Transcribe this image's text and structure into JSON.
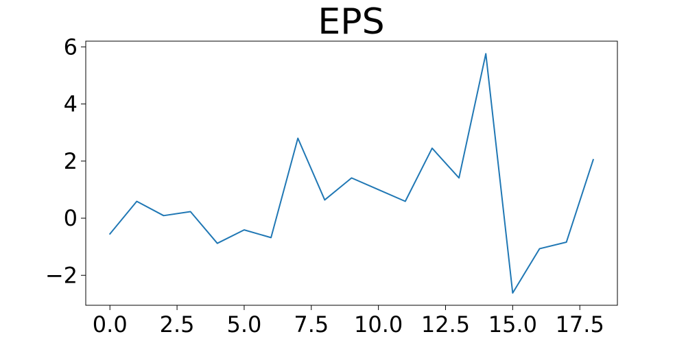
{
  "chart_data": {
    "type": "line",
    "title": "EPS",
    "xlabel": "",
    "ylabel": "",
    "xlim": [
      -0.9,
      18.9
    ],
    "ylim": [
      -3.05,
      6.2
    ],
    "grid": false,
    "x_ticks": [
      {
        "value": 0.0,
        "label": "0.0"
      },
      {
        "value": 2.5,
        "label": "2.5"
      },
      {
        "value": 5.0,
        "label": "5.0"
      },
      {
        "value": 7.5,
        "label": "7.5"
      },
      {
        "value": 10.0,
        "label": "10.0"
      },
      {
        "value": 12.5,
        "label": "12.5"
      },
      {
        "value": 15.0,
        "label": "15.0"
      },
      {
        "value": 17.5,
        "label": "17.5"
      }
    ],
    "y_ticks": [
      {
        "value": -2,
        "label": "−2"
      },
      {
        "value": 0,
        "label": "0"
      },
      {
        "value": 2,
        "label": "2"
      },
      {
        "value": 4,
        "label": "4"
      },
      {
        "value": 6,
        "label": "6"
      }
    ],
    "series": [
      {
        "color": "#1f77b4",
        "x": [
          0,
          1,
          2,
          3,
          4,
          5,
          6,
          7,
          8,
          9,
          10,
          11,
          12,
          13,
          14,
          15,
          16,
          17,
          18
        ],
        "y": [
          -0.55,
          0.59,
          0.09,
          0.23,
          -0.88,
          -0.41,
          -0.68,
          2.8,
          0.64,
          1.41,
          1.0,
          0.59,
          2.45,
          1.41,
          5.76,
          -2.62,
          -1.07,
          -0.84,
          2.05
        ]
      }
    ]
  }
}
